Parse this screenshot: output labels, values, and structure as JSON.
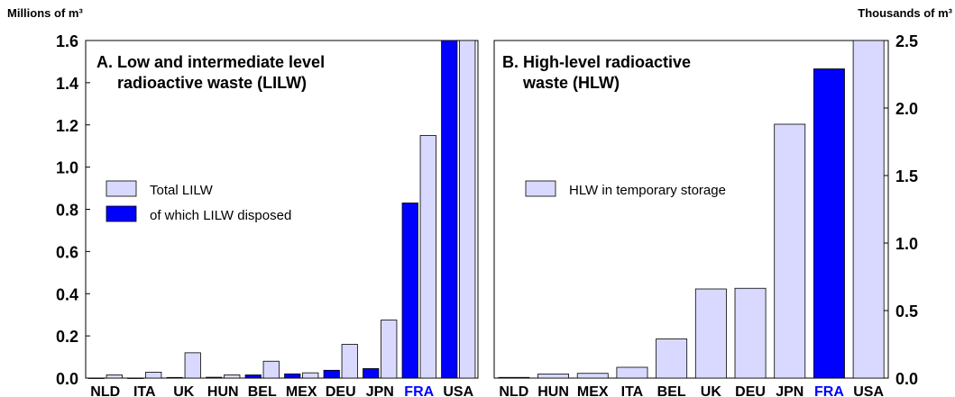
{
  "chart_data": [
    {
      "type": "bar",
      "panel": "A",
      "title": "A. Low and intermediate level radioactive waste (LILW)",
      "title_lines": [
        "A. Low and intermediate level",
        "radioactive waste (LILW)"
      ],
      "ylabel": "Millions of m³",
      "y_axis_side": "left",
      "ylim": [
        0,
        1.6
      ],
      "yticks": [
        "0.0",
        "0.2",
        "0.4",
        "0.6",
        "0.8",
        "1.0",
        "1.2",
        "1.4",
        "1.6"
      ],
      "categories": [
        "NLD",
        "ITA",
        "UK",
        "HUN",
        "BEL",
        "MEX",
        "DEU",
        "JPN",
        "FRA",
        "USA"
      ],
      "highlight_category": "FRA",
      "legend_placement": "middle-left",
      "series": [
        {
          "name": "of which LILW disposed",
          "color": "#0000ff",
          "values": [
            0,
            0,
            0.003,
            0.004,
            0.015,
            0.02,
            0.037,
            0.045,
            0.83,
            1.6
          ]
        },
        {
          "name": "Total LILW",
          "color": "#d9d9ff",
          "values": [
            0.015,
            0.028,
            0.12,
            0.015,
            0.08,
            0.025,
            0.16,
            0.275,
            1.15,
            1.6
          ]
        }
      ],
      "legend": [
        {
          "name": "Total LILW",
          "color": "#d9d9ff"
        },
        {
          "name": "of which LILW disposed",
          "color": "#0000ff"
        }
      ]
    },
    {
      "type": "bar",
      "panel": "B",
      "title": "B. High-level radioactive waste (HLW)",
      "title_lines": [
        "B. High-level radioactive",
        "waste (HLW)"
      ],
      "ylabel": "Thousands of m³",
      "y_axis_side": "right",
      "ylim": [
        0,
        2.5
      ],
      "yticks": [
        "0.0",
        "0.5",
        "1.0",
        "1.5",
        "2.0",
        "2.5"
      ],
      "categories": [
        "NLD",
        "HUN",
        "MEX",
        "ITA",
        "BEL",
        "UK",
        "DEU",
        "JPN",
        "FRA",
        "USA"
      ],
      "highlight_category": "FRA",
      "legend_placement": "middle-left",
      "series": [
        {
          "name": "HLW in temporary storage",
          "color": "#d9d9ff",
          "values": [
            0.005,
            0.03,
            0.035,
            0.08,
            0.29,
            0.66,
            0.665,
            1.88,
            2.29,
            2.5
          ]
        }
      ],
      "highlight_color": "#0000ff",
      "legend": [
        {
          "name": "HLW in temporary storage",
          "color": "#d9d9ff"
        }
      ]
    }
  ]
}
